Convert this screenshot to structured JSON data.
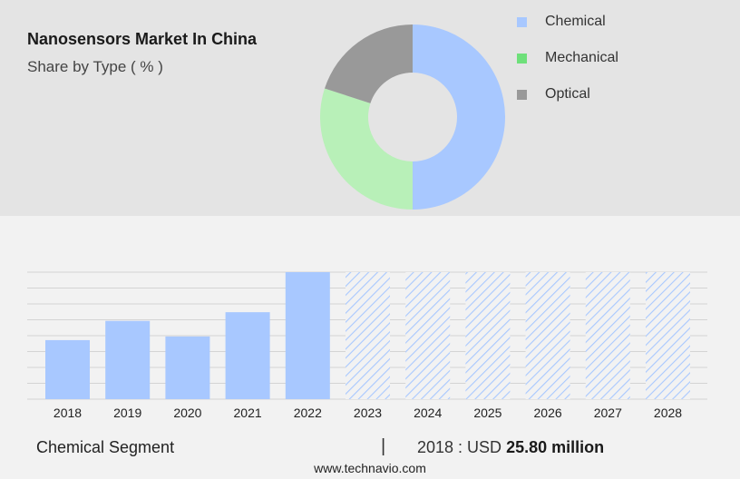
{
  "header": {
    "title": "Nanosensors Market In China",
    "subtitle": "Share by Type ( % )"
  },
  "footer": {
    "segment_label": "Chemical Segment",
    "separator": "|",
    "year_label": "2018 : USD",
    "value_label": "25.80 million",
    "source": "www.technavio.com"
  },
  "colors": {
    "chemical": "#a8c8ff",
    "mechanical": "#b8f0b8",
    "optical": "#999999",
    "mechanical_legend": "#6ee07a",
    "bar": "#a8c8ff",
    "forecast_hatch": "#a8c8ff"
  },
  "chart_data": [
    {
      "type": "pie",
      "donut": true,
      "legend_position": "right",
      "slices": [
        {
          "name": "Chemical",
          "value": 50
        },
        {
          "name": "Mechanical",
          "value": 30
        },
        {
          "name": "Optical",
          "value": 20
        }
      ]
    },
    {
      "type": "bar",
      "categories": [
        "2018",
        "2019",
        "2020",
        "2021",
        "2022",
        "2023",
        "2024",
        "2025",
        "2026",
        "2027",
        "2028"
      ],
      "values": [
        25.8,
        34.2,
        27.4,
        38.0,
        55.5,
        null,
        null,
        null,
        null,
        null,
        null
      ],
      "forecast": [
        false,
        false,
        false,
        false,
        false,
        true,
        true,
        true,
        true,
        true,
        true
      ],
      "ylim": [
        0,
        55.5
      ],
      "grid": true
    }
  ]
}
